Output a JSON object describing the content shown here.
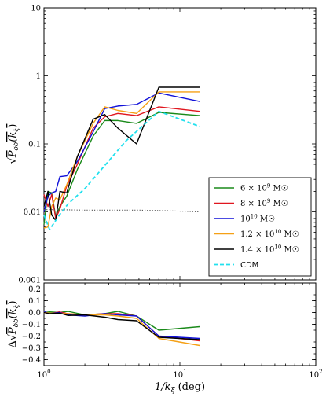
{
  "chart_data": [
    {
      "type": "line",
      "name": "main-panel",
      "x_scale": "log",
      "y_scale": "log",
      "xlim": [
        1,
        100
      ],
      "ylim": [
        0.001,
        10
      ],
      "ylabel": "√P_δδ(k_ξ)",
      "ylabel_parts": {
        "root": "√",
        "p": "P",
        "sub": "δδ",
        "arg": "(k",
        "argsub": "ξ",
        "close": ")"
      },
      "y_ticks": [
        {
          "v": 0.001,
          "label": "0.001"
        },
        {
          "v": 0.01,
          "label": "0.01"
        },
        {
          "v": 0.1,
          "label": "0.1"
        },
        {
          "v": 1,
          "label": "1"
        },
        {
          "v": 10,
          "label": "10"
        }
      ],
      "legend_position": "lower-right",
      "series": [
        {
          "name": "6 × 10⁹ M☉",
          "label_parts": [
            "6 × 10",
            "9",
            " M☉"
          ],
          "color": "#1a8a1a",
          "dash": "solid",
          "x": [
            1.0,
            1.07,
            1.14,
            1.22,
            1.31,
            1.47,
            1.76,
            2.3,
            2.8,
            3.5,
            4.8,
            7.0,
            14.0
          ],
          "y": [
            0.0065,
            0.02,
            0.019,
            0.0085,
            0.012,
            0.017,
            0.042,
            0.13,
            0.22,
            0.22,
            0.2,
            0.29,
            0.26
          ]
        },
        {
          "name": "8 × 10⁹ M☉",
          "label_parts": [
            "8 × 10",
            "9",
            " M☉"
          ],
          "color": "#e0161f",
          "dash": "solid",
          "x": [
            1.0,
            1.07,
            1.14,
            1.22,
            1.31,
            1.47,
            1.76,
            2.3,
            2.8,
            3.5,
            4.8,
            7.0,
            14.0
          ],
          "y": [
            0.018,
            0.012,
            0.018,
            0.008,
            0.011,
            0.024,
            0.05,
            0.17,
            0.25,
            0.28,
            0.26,
            0.35,
            0.3
          ]
        },
        {
          "name": "10¹⁰ M☉",
          "label_parts": [
            "10",
            "10",
            " M☉"
          ],
          "color": "#1010d8",
          "dash": "solid",
          "x": [
            1.0,
            1.07,
            1.14,
            1.22,
            1.31,
            1.47,
            1.76,
            2.3,
            2.8,
            3.5,
            4.8,
            7.0,
            14.0
          ],
          "y": [
            0.01,
            0.017,
            0.019,
            0.02,
            0.033,
            0.034,
            0.055,
            0.15,
            0.33,
            0.36,
            0.38,
            0.56,
            0.42
          ]
        },
        {
          "name": "1.2 × 10¹⁰ M☉",
          "label_parts": [
            "1.2 × 10",
            "10",
            " M☉"
          ],
          "color": "#f5a015",
          "dash": "solid",
          "x": [
            1.0,
            1.07,
            1.14,
            1.22,
            1.31,
            1.47,
            1.76,
            2.3,
            2.8,
            3.5,
            4.8,
            7.0,
            14.0
          ],
          "y": [
            0.0058,
            0.006,
            0.012,
            0.016,
            0.015,
            0.025,
            0.065,
            0.2,
            0.35,
            0.31,
            0.28,
            0.58,
            0.58
          ]
        },
        {
          "name": "1.4 × 10¹⁰ M☉",
          "label_parts": [
            "1.4 × 10",
            "10",
            " M☉"
          ],
          "color": "#000000",
          "dash": "solid",
          "x": [
            1.0,
            1.07,
            1.14,
            1.22,
            1.31,
            1.47,
            1.76,
            2.3,
            2.8,
            3.5,
            4.8,
            7.0,
            14.0
          ],
          "y": [
            0.012,
            0.02,
            0.009,
            0.0075,
            0.02,
            0.019,
            0.065,
            0.23,
            0.27,
            0.17,
            0.1,
            0.68,
            0.68
          ]
        },
        {
          "name": "CDM",
          "label_parts": [
            "CDM",
            "",
            ""
          ],
          "color": "#22e0ee",
          "dash": "dashed",
          "x": [
            1.0,
            1.1,
            1.3,
            1.5,
            2.0,
            2.8,
            4.0,
            7.0,
            14.0
          ],
          "y": [
            0.009,
            0.0055,
            0.009,
            0.013,
            0.022,
            0.048,
            0.11,
            0.3,
            0.18
          ]
        },
        {
          "name": "",
          "label_parts": [
            "",
            "",
            ""
          ],
          "color": "#555555",
          "dash": "dotted",
          "in_legend": false,
          "x": [
            1.0,
            1.5,
            2.0,
            3.0,
            5.0,
            8.0,
            14.0
          ],
          "y": [
            0.0108,
            0.0107,
            0.0106,
            0.0106,
            0.0106,
            0.0104,
            0.01
          ]
        }
      ]
    },
    {
      "type": "line",
      "name": "residual-panel",
      "x_scale": "log",
      "xlim": [
        1,
        100
      ],
      "ylim": [
        -0.45,
        0.25
      ],
      "xlabel": "1/k_ξ (deg)",
      "xlabel_parts": {
        "a": "1/k",
        "sub": "ξ",
        "b": " (deg)"
      },
      "ylabel": "Δ√P_δδ(k_ξ)",
      "ylabel_parts": {
        "delta": "Δ",
        "root": "√",
        "p": "P",
        "sub": "δδ",
        "arg": "(k",
        "argsub": "ξ",
        "close": ")"
      },
      "x_ticks": [
        {
          "v": 1,
          "base": "10",
          "exp": "0"
        },
        {
          "v": 10,
          "base": "10",
          "exp": "1"
        },
        {
          "v": 100,
          "base": "10",
          "exp": "2"
        }
      ],
      "y_ticks": [
        {
          "v": -0.4,
          "label": "−0.4"
        },
        {
          "v": -0.3,
          "label": "−0.3"
        },
        {
          "v": -0.2,
          "label": "−0.2"
        },
        {
          "v": -0.1,
          "label": "−0.1"
        },
        {
          "v": 0.0,
          "label": "0.0"
        },
        {
          "v": 0.1,
          "label": "0.1"
        },
        {
          "v": 0.2,
          "label": "0.2"
        }
      ],
      "series": [
        {
          "name": "6 × 10⁹ M☉",
          "color": "#1a8a1a",
          "x": [
            1.0,
            1.1,
            1.3,
            1.5,
            2.0,
            2.8,
            3.5,
            4.8,
            7.0,
            14.0
          ],
          "y": [
            0.0,
            0.005,
            0.0,
            0.01,
            -0.02,
            -0.01,
            0.01,
            -0.03,
            -0.15,
            -0.12
          ]
        },
        {
          "name": "8 × 10⁹ M☉",
          "color": "#e0161f",
          "x": [
            1.0,
            1.1,
            1.3,
            1.5,
            2.0,
            2.8,
            3.5,
            4.8,
            7.0,
            14.0
          ],
          "y": [
            0.0,
            -0.01,
            0.005,
            -0.01,
            -0.02,
            -0.01,
            -0.01,
            -0.03,
            -0.2,
            -0.24
          ]
        },
        {
          "name": "10¹⁰ M☉",
          "color": "#1010d8",
          "x": [
            1.0,
            1.1,
            1.3,
            1.5,
            2.0,
            2.8,
            3.5,
            4.8,
            7.0,
            14.0
          ],
          "y": [
            0.01,
            -0.01,
            0.0,
            -0.02,
            -0.03,
            -0.01,
            -0.02,
            -0.03,
            -0.2,
            -0.22
          ]
        },
        {
          "name": "1.2 × 10¹⁰ M☉",
          "color": "#f5a015",
          "x": [
            1.0,
            1.1,
            1.3,
            1.5,
            2.0,
            2.8,
            3.5,
            4.8,
            7.0,
            14.0
          ],
          "y": [
            0.0,
            -0.005,
            -0.01,
            -0.01,
            -0.02,
            -0.02,
            -0.03,
            -0.05,
            -0.22,
            -0.28
          ]
        },
        {
          "name": "1.4 × 10¹⁰ M☉",
          "color": "#000000",
          "x": [
            1.0,
            1.1,
            1.3,
            1.5,
            2.0,
            2.8,
            3.5,
            4.8,
            7.0,
            14.0
          ],
          "y": [
            0.0,
            -0.01,
            -0.005,
            -0.025,
            -0.02,
            -0.04,
            -0.06,
            -0.07,
            -0.21,
            -0.23
          ]
        }
      ]
    }
  ]
}
